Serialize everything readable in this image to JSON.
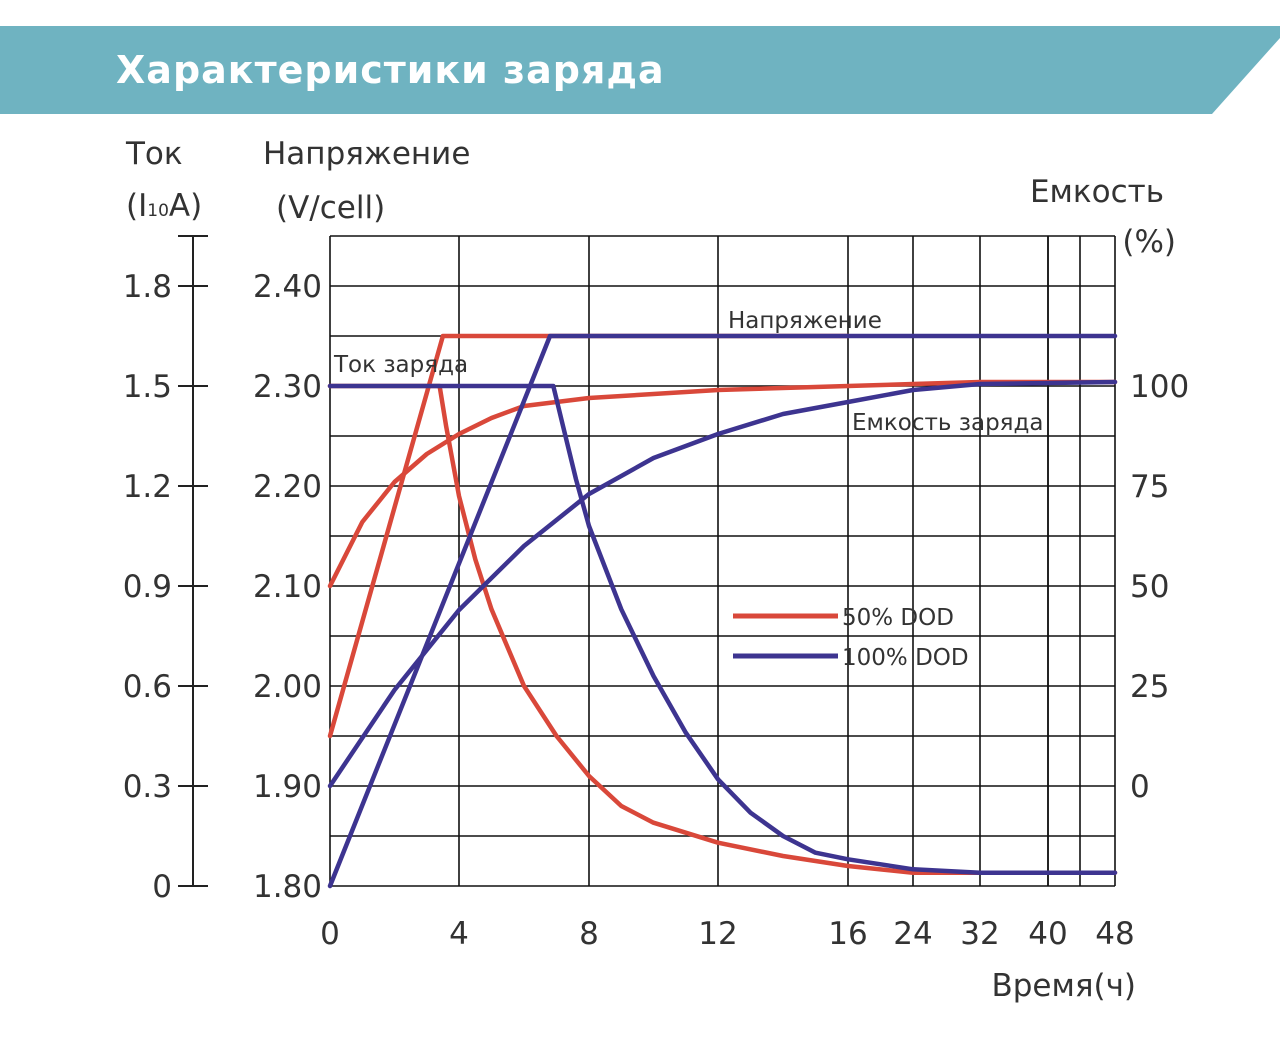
{
  "header": {
    "title": "Характеристики заряда"
  },
  "colors": {
    "banner": "#6fb3c1",
    "red": "#d9483a",
    "blue": "#3d3490",
    "grid": "#111111"
  },
  "chart_data": {
    "type": "line",
    "title": "Характеристики заряда",
    "x": {
      "label": "Время(ч)",
      "ticks": [
        "0",
        "4",
        "8",
        "12",
        "16",
        "24",
        "32",
        "40",
        "48"
      ],
      "note": "non-linear axis: 0-16 h linear, 16-48 h compressed"
    },
    "y_current": {
      "label_line1": "Ток",
      "label_line2_prefix": "(I",
      "label_line2_sub": "10",
      "label_line2_suffix": "A)",
      "ticks": [
        "0",
        "0.3",
        "0.6",
        "0.9",
        "1.2",
        "1.5",
        "1.8"
      ],
      "range": [
        0,
        1.95
      ]
    },
    "y_voltage": {
      "label_line1": "Напряжение",
      "label_line2": "(V/cell)",
      "ticks": [
        "1.80",
        "1.90",
        "2.00",
        "2.10",
        "2.20",
        "2.30",
        "2.40"
      ],
      "range": [
        1.8,
        2.45
      ]
    },
    "y_capacity": {
      "label_line1": "Емкость",
      "label_line2": "(%)",
      "ticks": [
        "0",
        "25",
        "50",
        "75",
        "100"
      ],
      "range": [
        -25,
        137.5
      ]
    },
    "annotations": {
      "voltage": "Напряжение",
      "current": "Ток заряда",
      "capacity": "Емкость заряда"
    },
    "legend": {
      "position": "center-right",
      "entries": [
        {
          "label": "50% DOD",
          "color": "#d9483a"
        },
        {
          "label": "100% DOD",
          "color": "#3d3490"
        }
      ]
    },
    "series": [
      {
        "name": "50% DOD",
        "quantity": "voltage",
        "axis": "voltage",
        "color": "#d9483a",
        "points": [
          [
            0,
            1.95
          ],
          [
            3.5,
            2.35
          ],
          [
            16,
            2.35
          ]
        ]
      },
      {
        "name": "50% DOD",
        "quantity": "current",
        "axis": "current",
        "color": "#d9483a",
        "points": [
          [
            0,
            1.5
          ],
          [
            3.4,
            1.5
          ],
          [
            3.6,
            1.38
          ],
          [
            4,
            1.17
          ],
          [
            4.5,
            0.98
          ],
          [
            5,
            0.83
          ],
          [
            6,
            0.6
          ],
          [
            7,
            0.45
          ],
          [
            8,
            0.33
          ],
          [
            9,
            0.24
          ],
          [
            10,
            0.19
          ],
          [
            12,
            0.13
          ],
          [
            14,
            0.09
          ],
          [
            16,
            0.06
          ],
          [
            24,
            0.04
          ],
          [
            32,
            0.04
          ],
          [
            48,
            0.04
          ]
        ]
      },
      {
        "name": "50% DOD",
        "quantity": "capacity",
        "axis": "capacity",
        "color": "#d9483a",
        "points": [
          [
            0,
            50
          ],
          [
            1,
            66
          ],
          [
            2,
            76
          ],
          [
            3,
            83
          ],
          [
            4,
            88
          ],
          [
            5,
            92
          ],
          [
            6,
            95
          ],
          [
            8,
            97
          ],
          [
            10,
            98
          ],
          [
            12,
            99
          ],
          [
            16,
            100
          ],
          [
            24,
            100.5
          ],
          [
            32,
            101
          ],
          [
            48,
            101
          ]
        ]
      },
      {
        "name": "100% DOD",
        "quantity": "voltage",
        "axis": "voltage",
        "color": "#3d3490",
        "points": [
          [
            0,
            1.8
          ],
          [
            6.8,
            2.35
          ],
          [
            16,
            2.35
          ],
          [
            48,
            2.35
          ]
        ]
      },
      {
        "name": "100% DOD",
        "quantity": "current",
        "axis": "current",
        "color": "#3d3490",
        "points": [
          [
            0,
            1.5
          ],
          [
            6.9,
            1.5
          ],
          [
            7.2,
            1.38
          ],
          [
            7.6,
            1.22
          ],
          [
            8,
            1.08
          ],
          [
            9,
            0.83
          ],
          [
            10,
            0.63
          ],
          [
            11,
            0.46
          ],
          [
            12,
            0.32
          ],
          [
            13,
            0.22
          ],
          [
            14,
            0.15
          ],
          [
            15,
            0.1
          ],
          [
            16,
            0.08
          ],
          [
            24,
            0.05
          ],
          [
            32,
            0.04
          ],
          [
            48,
            0.04
          ]
        ]
      },
      {
        "name": "100% DOD",
        "quantity": "capacity",
        "axis": "capacity",
        "color": "#3d3490",
        "points": [
          [
            0,
            0
          ],
          [
            2,
            24
          ],
          [
            4,
            44
          ],
          [
            6,
            60
          ],
          [
            8,
            73
          ],
          [
            10,
            82
          ],
          [
            12,
            88
          ],
          [
            14,
            93
          ],
          [
            16,
            96
          ],
          [
            24,
            99
          ],
          [
            32,
            100.5
          ],
          [
            48,
            101
          ]
        ]
      }
    ]
  }
}
